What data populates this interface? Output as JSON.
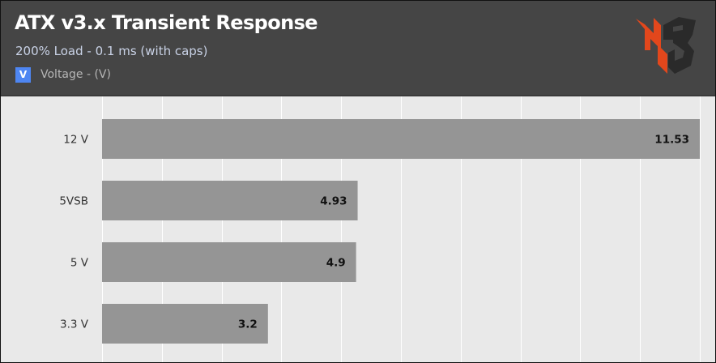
{
  "chart_data": {
    "type": "bar",
    "orientation": "horizontal",
    "title": "ATX v3.x Transient Response",
    "subtitle": "200% Load - 0.1 ms (with caps)",
    "legend": {
      "marker": "V",
      "label": "Voltage - (V)",
      "placement": "top-left"
    },
    "categories": [
      "12 V",
      "5VSB",
      "5 V",
      "3.3 V"
    ],
    "series": [
      {
        "name": "Voltage - (V)",
        "values": [
          11.53,
          4.93,
          4.9,
          3.2
        ],
        "labels": [
          "11.53",
          "4.93",
          "4.9",
          "3.2"
        ]
      }
    ],
    "xlim": [
      0,
      11.53
    ],
    "grid": true,
    "colors": {
      "bar": "#959595",
      "plot_background": "#e9e9e9",
      "gridline": "#ffffff",
      "header_background": "#454545",
      "title": "#ffffff",
      "subtitle": "#c9d2e6",
      "legend_marker": "#4e86f2",
      "logo": "#e2471c"
    }
  }
}
